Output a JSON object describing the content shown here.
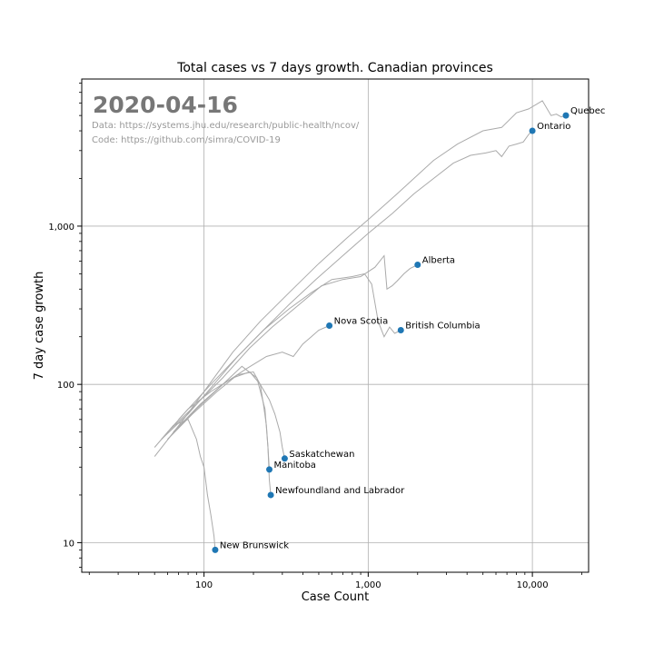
{
  "chart_data": {
    "type": "scatter",
    "title": "Total cases vs 7 days growth. Canadian provinces",
    "xlabel": "Case Count",
    "ylabel": "7 day case growth",
    "x_scale": "log",
    "y_scale": "log",
    "xlim": [
      18,
      22000
    ],
    "ylim": [
      6.5,
      8500
    ],
    "grid": true,
    "x_ticks": [
      {
        "value": 100,
        "label": "100"
      },
      {
        "value": 1000,
        "label": "1,000"
      },
      {
        "value": 10000,
        "label": "10,000"
      }
    ],
    "y_ticks": [
      {
        "value": 10,
        "label": "10"
      },
      {
        "value": 100,
        "label": "100"
      },
      {
        "value": 1000,
        "label": "1,000"
      }
    ],
    "annotations": {
      "date": "2020-04-16",
      "data_source": "Data: https://systems.jhu.edu/research/public-health/ncov/",
      "code_source": "Code: https://github.com/simra/COVID-19"
    },
    "point_color": "#1f77b4",
    "line_color": "#aaaaaa",
    "points": [
      {
        "name": "Quebec",
        "x": 16000,
        "y": 5000
      },
      {
        "name": "Ontario",
        "x": 10000,
        "y": 4000
      },
      {
        "name": "Alberta",
        "x": 2000,
        "y": 570
      },
      {
        "name": "Nova Scotia",
        "x": 580,
        "y": 235
      },
      {
        "name": "British Columbia",
        "x": 1580,
        "y": 220
      },
      {
        "name": "Saskatchewan",
        "x": 310,
        "y": 34
      },
      {
        "name": "Manitoba",
        "x": 250,
        "y": 29
      },
      {
        "name": "Newfoundland and Labrador",
        "x": 255,
        "y": 20
      },
      {
        "name": "New Brunswick",
        "x": 117,
        "y": 9
      }
    ],
    "series": [
      {
        "name": "Quebec",
        "x": [
          50,
          75,
          100,
          150,
          220,
          330,
          500,
          750,
          1000,
          1500,
          2500,
          3500,
          5000,
          6500,
          8000,
          9500,
          11500,
          13000,
          14000,
          15000,
          16000
        ],
        "y": [
          35,
          60,
          90,
          160,
          250,
          380,
          580,
          850,
          1100,
          1600,
          2600,
          3300,
          4000,
          4200,
          5200,
          5500,
          6200,
          5000,
          5100,
          4900,
          5000
        ]
      },
      {
        "name": "Ontario",
        "x": [
          55,
          80,
          110,
          160,
          230,
          330,
          480,
          700,
          1000,
          1400,
          1900,
          2500,
          3300,
          4200,
          5200,
          6000,
          6500,
          7200,
          8000,
          8800,
          9500,
          10000
        ],
        "y": [
          45,
          65,
          95,
          150,
          220,
          320,
          460,
          650,
          900,
          1200,
          1600,
          2000,
          2500,
          2800,
          2900,
          3000,
          2750,
          3200,
          3300,
          3400,
          3800,
          4000
        ]
      },
      {
        "name": "Alberta",
        "x": [
          60,
          90,
          130,
          190,
          260,
          380,
          520,
          700,
          900,
          1100,
          1250,
          1300,
          1400,
          1500,
          1650,
          1800,
          2000
        ],
        "y": [
          50,
          75,
          110,
          170,
          230,
          320,
          420,
          460,
          480,
          550,
          650,
          400,
          420,
          450,
          500,
          540,
          570
        ]
      },
      {
        "name": "British Columbia",
        "x": [
          70,
          110,
          160,
          230,
          330,
          450,
          600,
          800,
          950,
          1050,
          1150,
          1250,
          1350,
          1450,
          1580
        ],
        "y": [
          60,
          100,
          150,
          220,
          300,
          380,
          460,
          480,
          500,
          430,
          250,
          200,
          230,
          210,
          220
        ]
      },
      {
        "name": "Nova Scotia",
        "x": [
          60,
          90,
          130,
          180,
          240,
          300,
          350,
          400,
          450,
          500,
          580
        ],
        "y": [
          45,
          70,
          100,
          125,
          150,
          160,
          150,
          180,
          200,
          220,
          235
        ]
      },
      {
        "name": "Saskatchewan",
        "x": [
          55,
          80,
          110,
          150,
          190,
          220,
          250,
          270,
          290,
          300,
          310
        ],
        "y": [
          45,
          70,
          90,
          110,
          120,
          100,
          80,
          65,
          50,
          40,
          34
        ]
      },
      {
        "name": "Manitoba",
        "x": [
          60,
          85,
          120,
          160,
          200,
          220,
          230,
          240,
          245,
          250
        ],
        "y": [
          45,
          65,
          90,
          115,
          120,
          100,
          75,
          55,
          40,
          29
        ]
      },
      {
        "name": "Newfoundland and Labrador",
        "x": [
          65,
          95,
          130,
          170,
          210,
          235,
          245,
          250,
          255
        ],
        "y": [
          50,
          75,
          100,
          130,
          110,
          70,
          40,
          25,
          20
        ]
      },
      {
        "name": "New Brunswick",
        "x": [
          50,
          65,
          80,
          90,
          95,
          100,
          105,
          110,
          115,
          117
        ],
        "y": [
          40,
          55,
          60,
          45,
          35,
          30,
          20,
          15,
          11,
          9
        ]
      }
    ]
  }
}
